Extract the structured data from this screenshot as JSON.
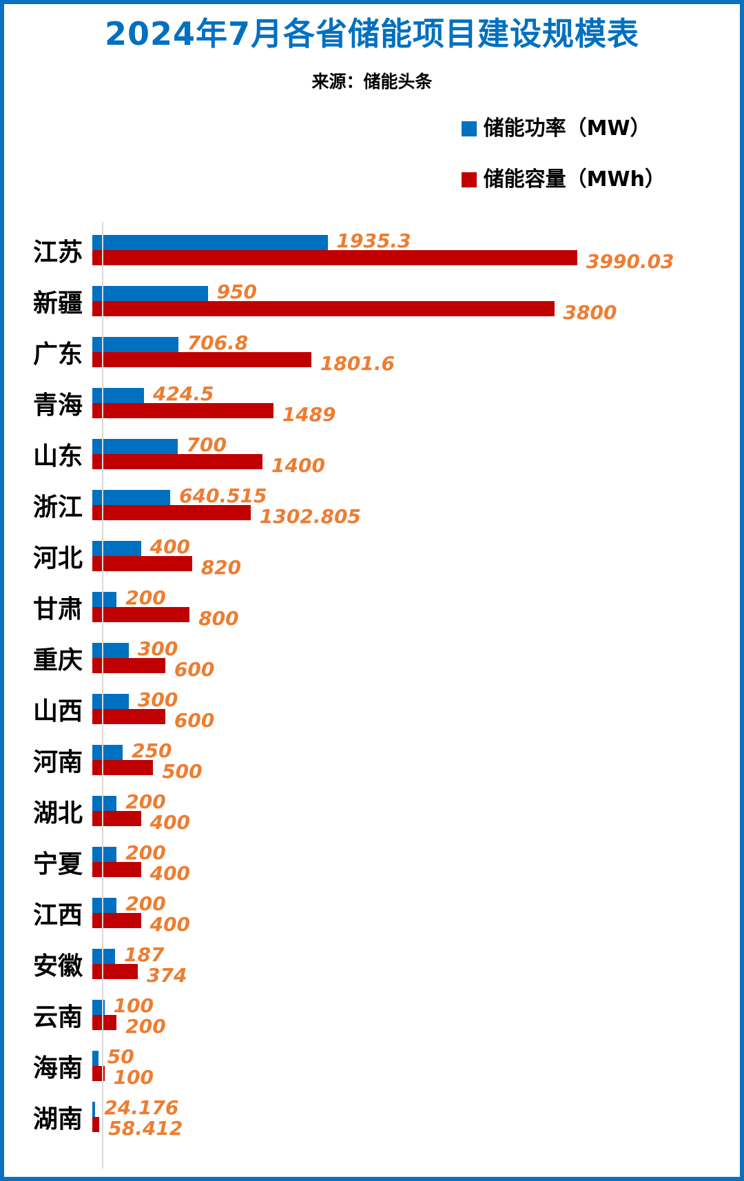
{
  "page": {
    "title": "2024年7月各省储能项目建设规模表",
    "source": "来源：储能头条"
  },
  "legend": [
    {
      "label": "储能功率（MW）",
      "color": "#0070C0"
    },
    {
      "label": "储能容量（MWh）",
      "color": "#C00000"
    }
  ],
  "colors": {
    "title": "#0070C0",
    "power_bar": "#0070C0",
    "capacity_bar": "#C00000",
    "value_label": "#ED7D31",
    "frame_border": "#0b70c0",
    "axis_line": "#D9D9D9"
  },
  "chart_data": {
    "type": "bar",
    "orientation": "horizontal",
    "title": "2024年7月各省储能项目建设规模表",
    "subtitle": "来源：储能头条",
    "categories": [
      "江苏",
      "新疆",
      "广东",
      "青海",
      "山东",
      "浙江",
      "河北",
      "甘肃",
      "重庆",
      "山西",
      "河南",
      "湖北",
      "宁夏",
      "江西",
      "安徽",
      "云南",
      "海南",
      "湖南"
    ],
    "series": [
      {
        "name": "储能功率（MW）",
        "color": "#0070C0",
        "values": [
          1935.3,
          950,
          706.8,
          424.5,
          700,
          640.515,
          400,
          200,
          300,
          300,
          250,
          200,
          200,
          200,
          187,
          100,
          50,
          24.176
        ]
      },
      {
        "name": "储能容量（MWh）",
        "color": "#C00000",
        "values": [
          3990.03,
          3800,
          1801.6,
          1489,
          1400,
          1302.805,
          820,
          800,
          600,
          600,
          500,
          400,
          400,
          400,
          374,
          200,
          100,
          58.412
        ]
      }
    ],
    "value_labels": true,
    "value_label_color": "#ED7D31",
    "grid": false,
    "axis_ticks": false,
    "legend_position": "top-right"
  }
}
